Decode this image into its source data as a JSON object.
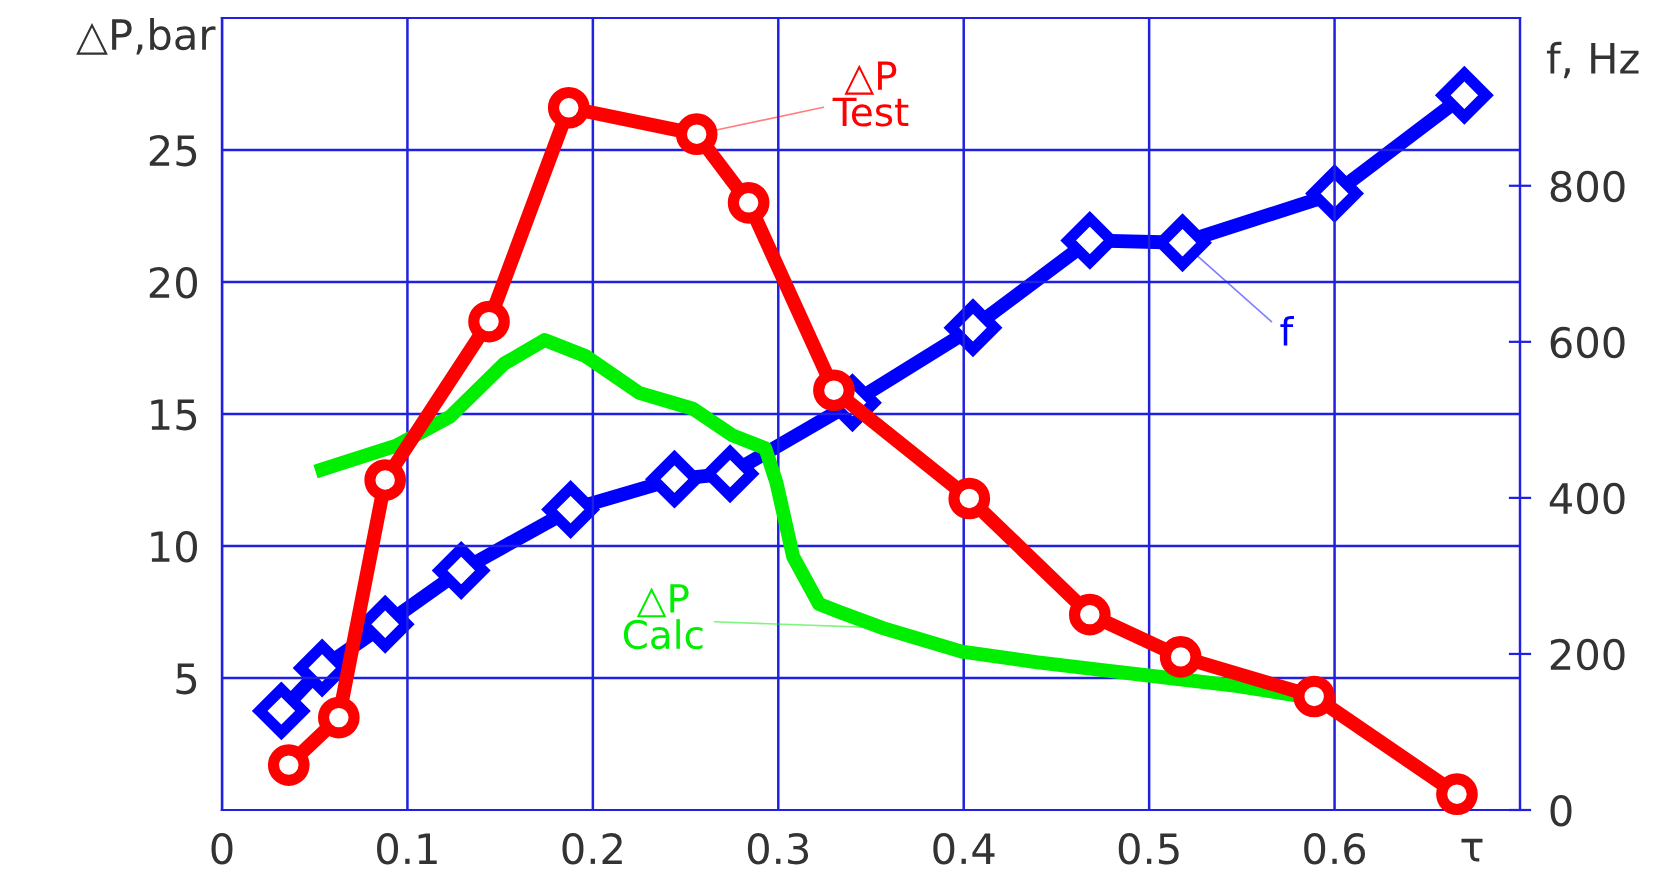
{
  "chart_data": {
    "type": "line",
    "xlabel": "τ",
    "ylabel": "△P,bar",
    "y2label": "f, Hz",
    "xlim": [
      0,
      0.7
    ],
    "xticks": [
      0,
      0.1,
      0.2,
      0.3,
      0.4,
      0.5,
      0.6
    ],
    "ylim": [
      0,
      30
    ],
    "yticks": [
      5,
      10,
      15,
      20,
      25
    ],
    "y2lim": [
      0,
      1015
    ],
    "y2ticks": [
      0,
      200,
      400,
      600,
      800
    ],
    "grid": true,
    "line_style": "solid",
    "series": [
      {
        "name": "△P\nTest",
        "color": "#ff0000",
        "marker": "circle",
        "x": [
          0.036,
          0.063,
          0.088,
          0.144,
          0.187,
          0.256,
          0.284,
          0.33,
          0.403,
          0.468,
          0.517,
          0.589,
          0.666
        ],
        "values": [
          1.7,
          3.5,
          12.5,
          18.5,
          26.6,
          25.6,
          23.0,
          15.9,
          11.8,
          7.4,
          5.8,
          4.3,
          0.6
        ]
      },
      {
        "name": "△P\nCalc",
        "color": "#00ee00",
        "marker": "none",
        "x": [
          0.054,
          0.094,
          0.123,
          0.152,
          0.174,
          0.196,
          0.225,
          0.254,
          0.275,
          0.293,
          0.299,
          0.308,
          0.322,
          0.333,
          0.356,
          0.399,
          0.439,
          0.475,
          0.511,
          0.547,
          0.583
        ],
        "values": [
          12.9,
          13.8,
          14.9,
          16.9,
          17.8,
          17.2,
          15.8,
          15.2,
          14.2,
          13.7,
          12.4,
          9.6,
          7.8,
          7.5,
          6.9,
          6.0,
          5.6,
          5.3,
          5.0,
          4.7,
          4.3
        ]
      },
      {
        "name": "f",
        "color": "#0000ff",
        "marker": "diamond",
        "axis": "y2",
        "x": [
          0.032,
          0.054,
          0.088,
          0.129,
          0.188,
          0.244,
          0.274,
          0.34,
          0.405,
          0.468,
          0.518,
          0.6,
          0.67
        ],
        "values": [
          127,
          182,
          238,
          307,
          385,
          424,
          431,
          522,
          618,
          730,
          727,
          790,
          916
        ]
      }
    ]
  }
}
